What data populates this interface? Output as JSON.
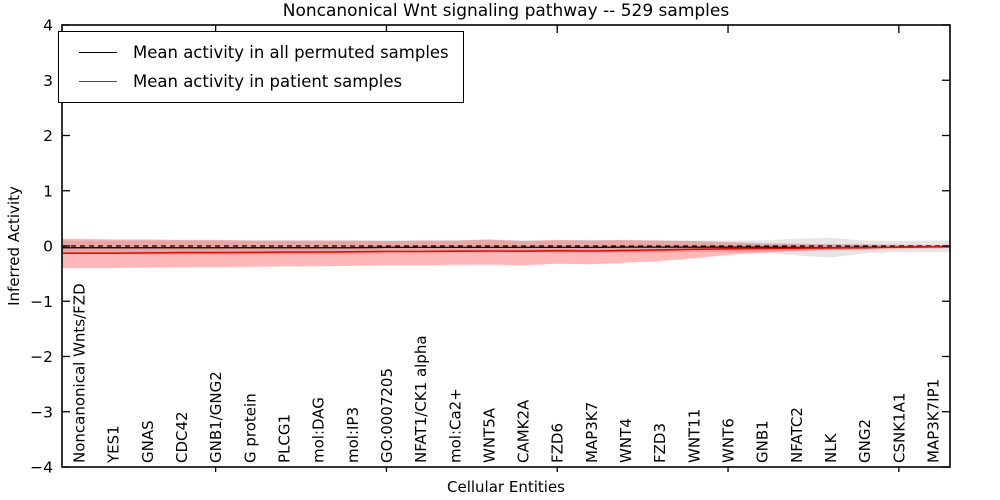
{
  "chart_data": {
    "type": "line",
    "title": "Noncanonical Wnt signaling pathway -- 529 samples",
    "xlabel": "Cellular Entities",
    "ylabel": "Inferred Activity",
    "ylim": [
      -4,
      4
    ],
    "yticks": [
      4,
      3,
      2,
      1,
      0,
      -1,
      -2,
      -3,
      -4
    ],
    "yticklabels": [
      "4",
      "3",
      "2",
      "1",
      "0",
      "−1",
      "−2",
      "−3",
      "−4"
    ],
    "xticks": [
      5,
      10,
      15,
      20,
      25
    ],
    "grid": false,
    "legend_position": "upper left",
    "categories": [
      "Noncanonical Wnts/FZD",
      "YES1",
      "GNAS",
      "CDC42",
      "GNB1/GNG2",
      "G protein",
      "PLCG1",
      "mol:DAG",
      "mol:IP3",
      "GO:0007205",
      "NFAT1/CK1 alpha",
      "mol:Ca2+",
      "WNT5A",
      "CAMK2A",
      "FZD6",
      "MAP3K7",
      "WNT4",
      "FZD3",
      "WNT11",
      "WNT6",
      "GNB1",
      "NFATC2",
      "NLK",
      "GNG2",
      "CSNK1A1",
      "MAP3K7IP1"
    ],
    "reference_line": {
      "y": 0,
      "style": "dashed",
      "color": "#000000"
    },
    "series": [
      {
        "key": "permuted",
        "name": "Mean activity in all permuted samples",
        "color": "#000000",
        "band_color": "#888888",
        "band_opacity": 0.22,
        "values": [
          -0.03,
          -0.03,
          -0.03,
          -0.03,
          -0.03,
          -0.03,
          -0.03,
          -0.03,
          -0.03,
          -0.025,
          -0.025,
          -0.025,
          -0.025,
          -0.025,
          -0.025,
          -0.025,
          -0.02,
          -0.02,
          -0.02,
          -0.02,
          -0.02,
          -0.025,
          -0.03,
          -0.02,
          -0.02,
          -0.015
        ],
        "band_upper": [
          0.1,
          0.1,
          0.1,
          0.1,
          0.1,
          0.1,
          0.1,
          0.1,
          0.1,
          0.1,
          0.1,
          0.1,
          0.11,
          0.1,
          0.1,
          0.11,
          0.1,
          0.1,
          0.1,
          0.1,
          0.1,
          0.13,
          0.15,
          0.1,
          0.09,
          0.1
        ],
        "band_lower": [
          -0.11,
          -0.11,
          -0.11,
          -0.11,
          -0.11,
          -0.11,
          -0.11,
          -0.11,
          -0.11,
          -0.11,
          -0.11,
          -0.11,
          -0.12,
          -0.11,
          -0.11,
          -0.12,
          -0.11,
          -0.11,
          -0.11,
          -0.11,
          -0.12,
          -0.17,
          -0.21,
          -0.13,
          -0.11,
          -0.11
        ]
      },
      {
        "key": "patient",
        "name": "Mean activity in patient samples",
        "color": "#ff0000",
        "band_color": "#ff0000",
        "band_opacity": 0.28,
        "values": [
          -0.13,
          -0.13,
          -0.125,
          -0.12,
          -0.12,
          -0.115,
          -0.11,
          -0.11,
          -0.105,
          -0.1,
          -0.1,
          -0.095,
          -0.09,
          -0.095,
          -0.085,
          -0.09,
          -0.08,
          -0.07,
          -0.06,
          -0.05,
          -0.045,
          -0.04,
          -0.035,
          -0.03,
          -0.02,
          -0.015
        ],
        "band_upper": [
          0.13,
          0.12,
          0.12,
          0.11,
          0.11,
          0.1,
          0.1,
          0.1,
          0.1,
          0.09,
          0.1,
          0.1,
          0.12,
          0.09,
          0.11,
          0.1,
          0.11,
          0.1,
          0.09,
          0.07,
          0.05,
          0.04,
          0.03,
          0.03,
          0.02,
          0.02
        ],
        "band_lower": [
          -0.4,
          -0.4,
          -0.39,
          -0.385,
          -0.38,
          -0.375,
          -0.37,
          -0.365,
          -0.36,
          -0.35,
          -0.345,
          -0.34,
          -0.335,
          -0.35,
          -0.32,
          -0.33,
          -0.3,
          -0.27,
          -0.22,
          -0.16,
          -0.12,
          -0.09,
          -0.07,
          -0.055,
          -0.045,
          -0.035
        ]
      }
    ]
  }
}
